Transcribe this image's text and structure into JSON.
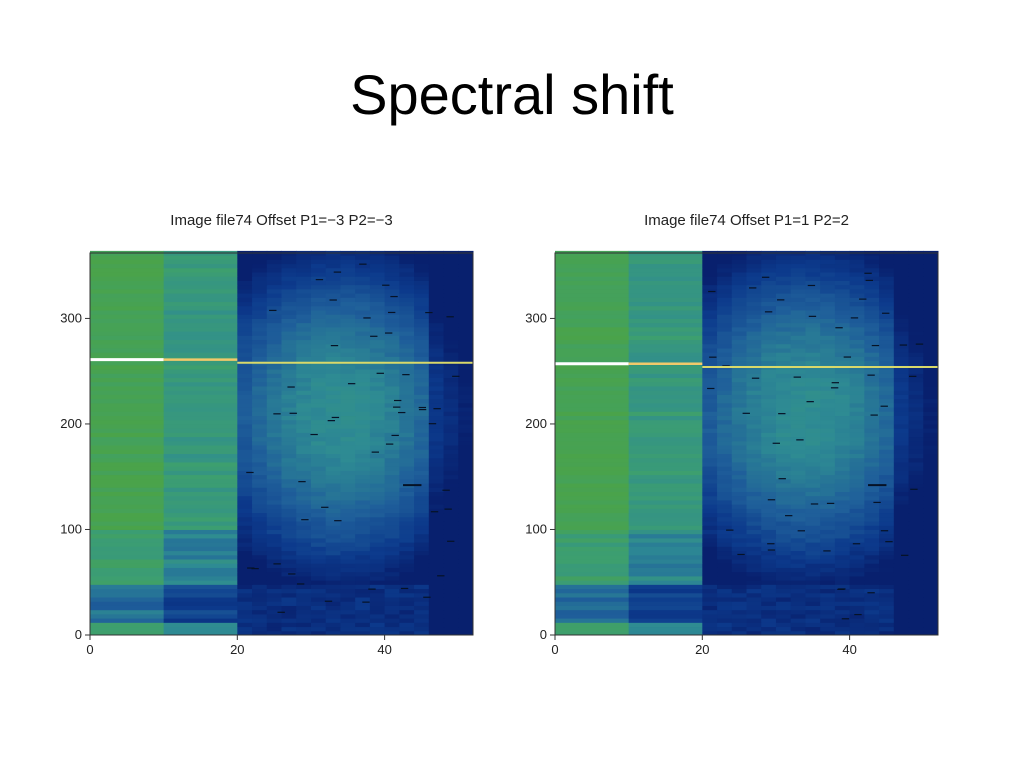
{
  "slide": {
    "title": "Spectral shift"
  },
  "chart_data": [
    {
      "type": "heatmap",
      "title": "Image file74 Offset P1=−3 P2=−3",
      "xlabel": "",
      "ylabel": "",
      "xlim": [
        0,
        52
      ],
      "ylim": [
        0,
        362
      ],
      "xticks": [
        0,
        20,
        40
      ],
      "yticks": [
        0,
        100,
        200,
        300
      ],
      "x_tick_labels": [
        "0",
        "20",
        "40"
      ],
      "y_tick_labels": [
        "0",
        "100",
        "200",
        "300"
      ],
      "bright_line_y": 261,
      "block_boundaries_x": [
        10,
        20
      ],
      "colormap": [
        "#08206e",
        "#0c3a8c",
        "#1f5f9a",
        "#2e8b93",
        "#3d9f6f",
        "#4aa34a"
      ],
      "line_colors": [
        "#ffffff",
        "#f2c96a",
        "#d9d96a"
      ],
      "grid": false
    },
    {
      "type": "heatmap",
      "title": "Image file74 Offset P1=1 P2=2",
      "xlabel": "",
      "ylabel": "",
      "xlim": [
        0,
        52
      ],
      "ylim": [
        0,
        362
      ],
      "xticks": [
        0,
        20,
        40
      ],
      "yticks": [
        0,
        100,
        200,
        300
      ],
      "x_tick_labels": [
        "0",
        "20",
        "40"
      ],
      "y_tick_labels": [
        "0",
        "100",
        "200",
        "300"
      ],
      "bright_line_y": 257,
      "block_boundaries_x": [
        10,
        20
      ],
      "colormap": [
        "#08206e",
        "#0c3a8c",
        "#1f5f9a",
        "#2e8b93",
        "#3d9f6f",
        "#4aa34a"
      ],
      "line_colors": [
        "#ffffff",
        "#f2c96a",
        "#d9d96a"
      ],
      "grid": false
    }
  ]
}
